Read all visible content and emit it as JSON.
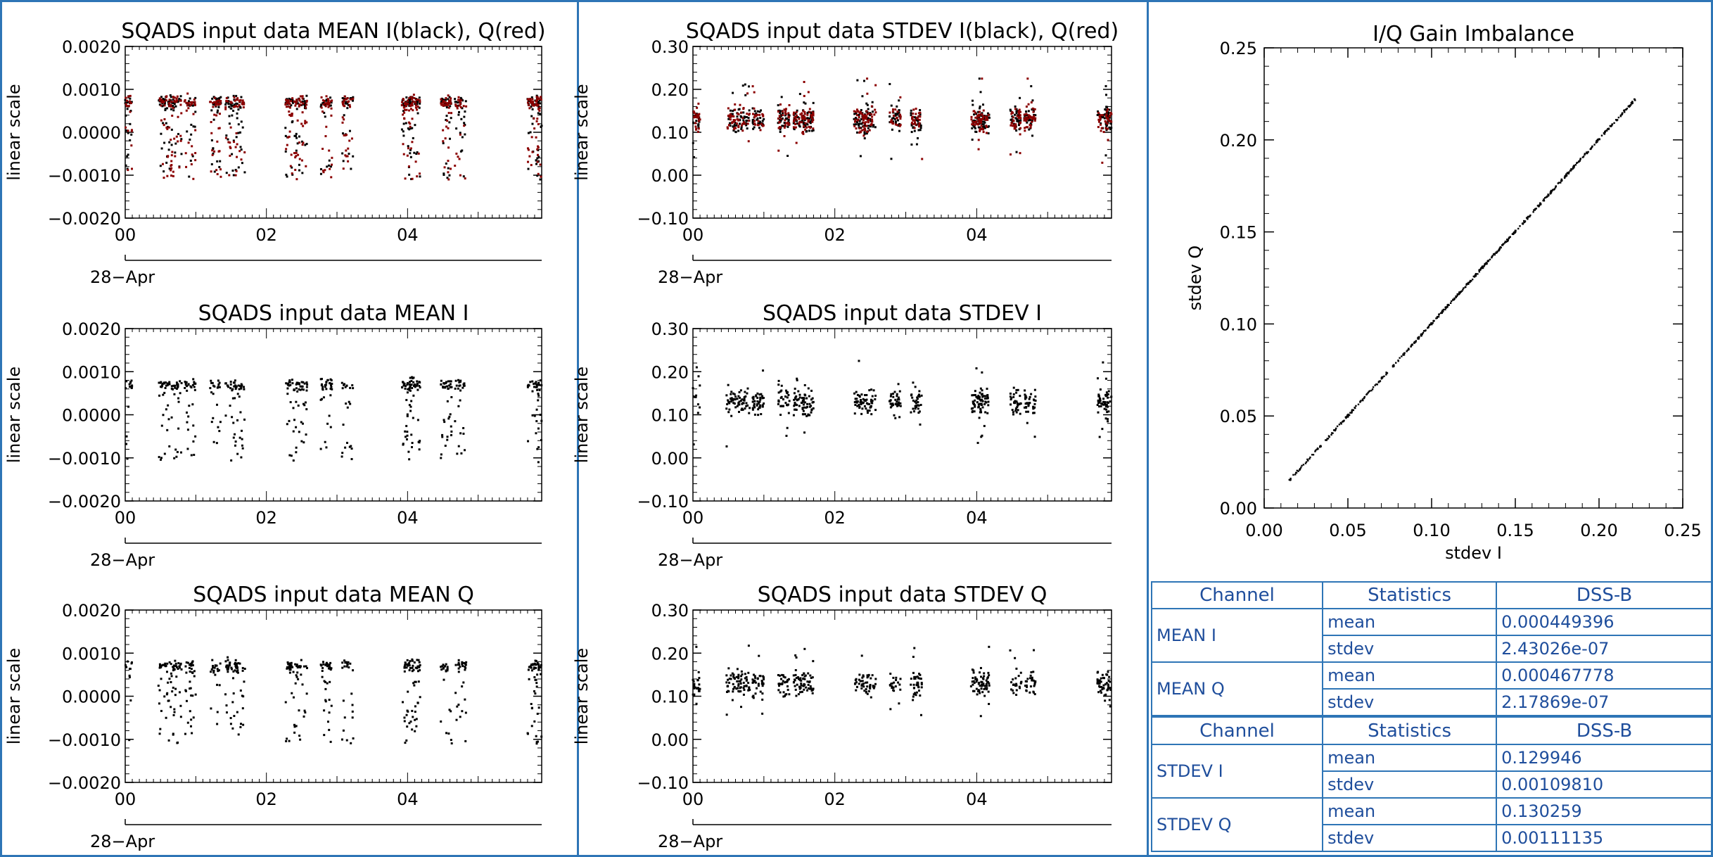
{
  "chart_data": [
    {
      "id": "mean_iq",
      "type": "scatter",
      "title": "SQADS input data MEAN I(black), Q(red)",
      "ylabel": "linear scale",
      "ylim": [
        -0.002,
        0.002
      ],
      "yticks": [
        "0.0020",
        "0.0010",
        "0.0000",
        "−0.0010",
        "−0.0020"
      ],
      "xticks": [
        "00",
        "02",
        "04"
      ],
      "date_label": "28−Apr",
      "xlim_hours": [
        0,
        5.9
      ],
      "series": [
        {
          "kind": "I",
          "color": "#000000"
        },
        {
          "kind": "Q",
          "color": "#8b0000"
        }
      ]
    },
    {
      "id": "stdev_iq",
      "type": "scatter",
      "title": "SQADS input data STDEV I(black), Q(red)",
      "ylabel": "linear scale",
      "ylim": [
        -0.1,
        0.3
      ],
      "yticks": [
        "0.30",
        "0.20",
        "0.10",
        "0.00",
        "−0.10"
      ],
      "xticks": [
        "00",
        "02",
        "04"
      ],
      "date_label": "28−Apr",
      "xlim_hours": [
        0,
        5.9
      ],
      "series": [
        {
          "kind": "I",
          "color": "#000000"
        },
        {
          "kind": "Q",
          "color": "#8b0000"
        }
      ]
    },
    {
      "id": "iq_gain",
      "type": "scatter",
      "title": "I/Q Gain Imbalance",
      "xlabel": "stdev I",
      "ylabel": "stdev Q",
      "xlim": [
        0,
        0.25
      ],
      "ylim": [
        0,
        0.25
      ],
      "xticks": [
        "0.00",
        "0.05",
        "0.10",
        "0.15",
        "0.20",
        "0.25"
      ],
      "yticks": [
        "0.25",
        "0.20",
        "0.15",
        "0.10",
        "0.05",
        "0.00"
      ],
      "points_range": [
        0.015,
        0.222
      ]
    },
    {
      "id": "mean_i",
      "type": "scatter",
      "title": "SQADS input data MEAN I",
      "ylabel": "linear scale",
      "ylim": [
        -0.002,
        0.002
      ],
      "yticks": [
        "0.0020",
        "0.0010",
        "0.0000",
        "−0.0010",
        "−0.0020"
      ],
      "xticks": [
        "00",
        "02",
        "04"
      ],
      "date_label": "28−Apr",
      "xlim_hours": [
        0,
        5.9
      ],
      "series": [
        {
          "kind": "I",
          "color": "#000000"
        }
      ]
    },
    {
      "id": "stdev_i",
      "type": "scatter",
      "title": "SQADS input data STDEV I",
      "ylabel": "linear scale",
      "ylim": [
        -0.1,
        0.3
      ],
      "yticks": [
        "0.30",
        "0.20",
        "0.10",
        "0.00",
        "−0.10"
      ],
      "xticks": [
        "00",
        "02",
        "04"
      ],
      "date_label": "28−Apr",
      "xlim_hours": [
        0,
        5.9
      ],
      "series": [
        {
          "kind": "I",
          "color": "#000000"
        }
      ]
    },
    {
      "id": "mean_q",
      "type": "scatter",
      "title": "SQADS input data MEAN Q",
      "ylabel": "linear scale",
      "ylim": [
        -0.002,
        0.002
      ],
      "yticks": [
        "0.0020",
        "0.0010",
        "0.0000",
        "−0.0010",
        "−0.0020"
      ],
      "xticks": [
        "00",
        "02",
        "04"
      ],
      "date_label": "28−Apr",
      "xlim_hours": [
        0,
        5.9
      ],
      "series": [
        {
          "kind": "I",
          "color": "#000000"
        }
      ]
    },
    {
      "id": "stdev_q",
      "type": "scatter",
      "title": "SQADS input data STDEV Q",
      "ylabel": "linear scale",
      "ylim": [
        -0.1,
        0.3
      ],
      "yticks": [
        "0.30",
        "0.20",
        "0.10",
        "0.00",
        "−0.10"
      ],
      "xticks": [
        "00",
        "02",
        "04"
      ],
      "date_label": "28−Apr",
      "xlim_hours": [
        0,
        5.9
      ],
      "series": [
        {
          "kind": "I",
          "color": "#000000"
        }
      ]
    }
  ],
  "bursts_hours": [
    0.02,
    0.55,
    0.72,
    0.92,
    1.28,
    1.5,
    1.62,
    2.35,
    2.5,
    2.85,
    3.15,
    4.0,
    4.1,
    4.55,
    4.75,
    5.78,
    5.9
  ],
  "stats_table": {
    "header": {
      "channel": "Channel",
      "statistics": "Statistics",
      "value": "DSS-B"
    },
    "rows": [
      {
        "channel": "MEAN I",
        "mean": "0.000449396",
        "stdev": "2.43026e-07"
      },
      {
        "channel": "MEAN Q",
        "mean": "0.000467778",
        "stdev": "2.17869e-07"
      },
      {
        "channel": "STDEV I",
        "mean": "0.129946",
        "stdev": "0.00109810"
      },
      {
        "channel": "STDEV Q",
        "mean": "0.130259",
        "stdev": "0.00111135"
      }
    ],
    "mean_label": "mean",
    "stdev_label": "stdev"
  }
}
